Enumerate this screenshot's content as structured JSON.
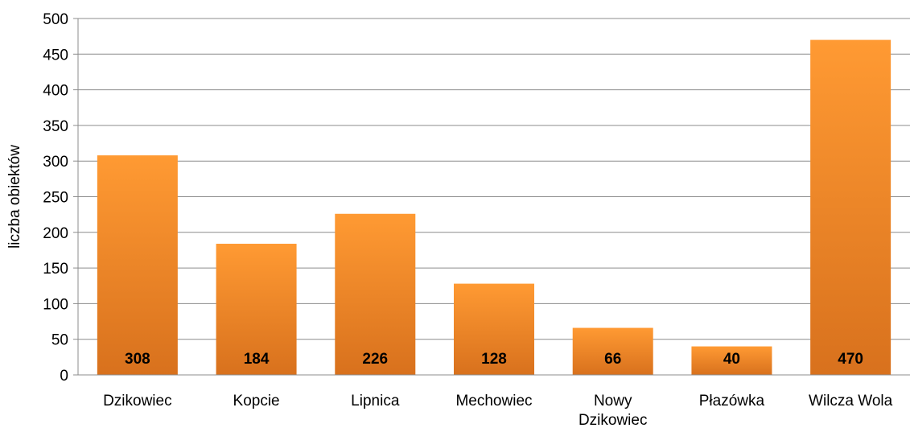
{
  "chart_data": {
    "type": "bar",
    "categories": [
      "Dzikowiec",
      "Kopcie",
      "Lipnica",
      "Mechowiec",
      "Nowy Dzikowiec",
      "Płazówka",
      "Wilcza Wola"
    ],
    "category_lines": [
      [
        "Dzikowiec"
      ],
      [
        "Kopcie"
      ],
      [
        "Lipnica"
      ],
      [
        "Mechowiec"
      ],
      [
        "Nowy",
        "Dzikowiec"
      ],
      [
        "Płazówka"
      ],
      [
        "Wilcza Wola"
      ]
    ],
    "values": [
      308,
      184,
      226,
      128,
      66,
      40,
      470
    ],
    "data_labels": [
      "308",
      "184",
      "226",
      "128",
      "66",
      "40",
      "470"
    ],
    "title": "",
    "xlabel": "",
    "ylabel": "liczba obiektów",
    "ylim": [
      0,
      500
    ],
    "yticks": [
      0,
      50,
      100,
      150,
      200,
      250,
      300,
      350,
      400,
      450,
      500
    ],
    "grid": true,
    "legend": "none",
    "colors": {
      "bar_top": "#ff9a33",
      "bar_bottom": "#d8711d",
      "grid": "#8c8c8c"
    }
  }
}
